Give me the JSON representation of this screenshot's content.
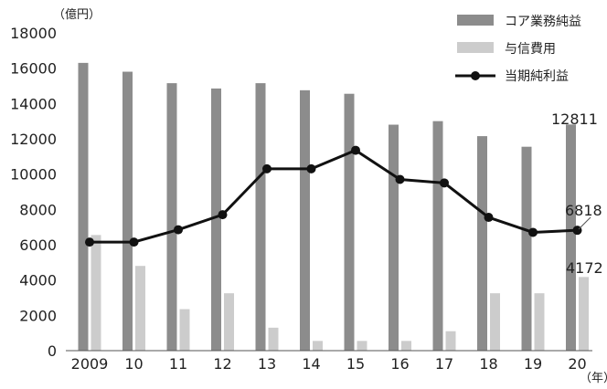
{
  "chart_data": {
    "type": "bar",
    "y_unit_label": "（億円）",
    "x_unit_label": "（年）",
    "categories": [
      "2009",
      "10",
      "11",
      "12",
      "13",
      "14",
      "15",
      "16",
      "17",
      "18",
      "19",
      "20"
    ],
    "ylim": [
      0,
      18000
    ],
    "yticks": [
      0,
      2000,
      4000,
      6000,
      8000,
      10000,
      12000,
      14000,
      16000,
      18000
    ],
    "grid": false,
    "legend_position": "top-right",
    "series": [
      {
        "name": "コア業務純益",
        "kind": "bar",
        "color": "#8c8c8c",
        "values": [
          16300,
          15800,
          15150,
          14850,
          15150,
          14750,
          14550,
          12800,
          13000,
          12150,
          11550,
          12811
        ]
      },
      {
        "name": "与信費用",
        "kind": "bar",
        "color": "#cccccc",
        "values": [
          6550,
          4800,
          2350,
          3250,
          1300,
          550,
          550,
          550,
          1100,
          3250,
          3250,
          4172
        ]
      },
      {
        "name": "当期純利益",
        "kind": "line",
        "color": "#111111",
        "values": [
          6150,
          6150,
          6850,
          7700,
          10300,
          10300,
          11350,
          9700,
          9500,
          7550,
          6700,
          6818
        ]
      }
    ],
    "data_labels": [
      "12811",
      "6818",
      "4172"
    ]
  }
}
